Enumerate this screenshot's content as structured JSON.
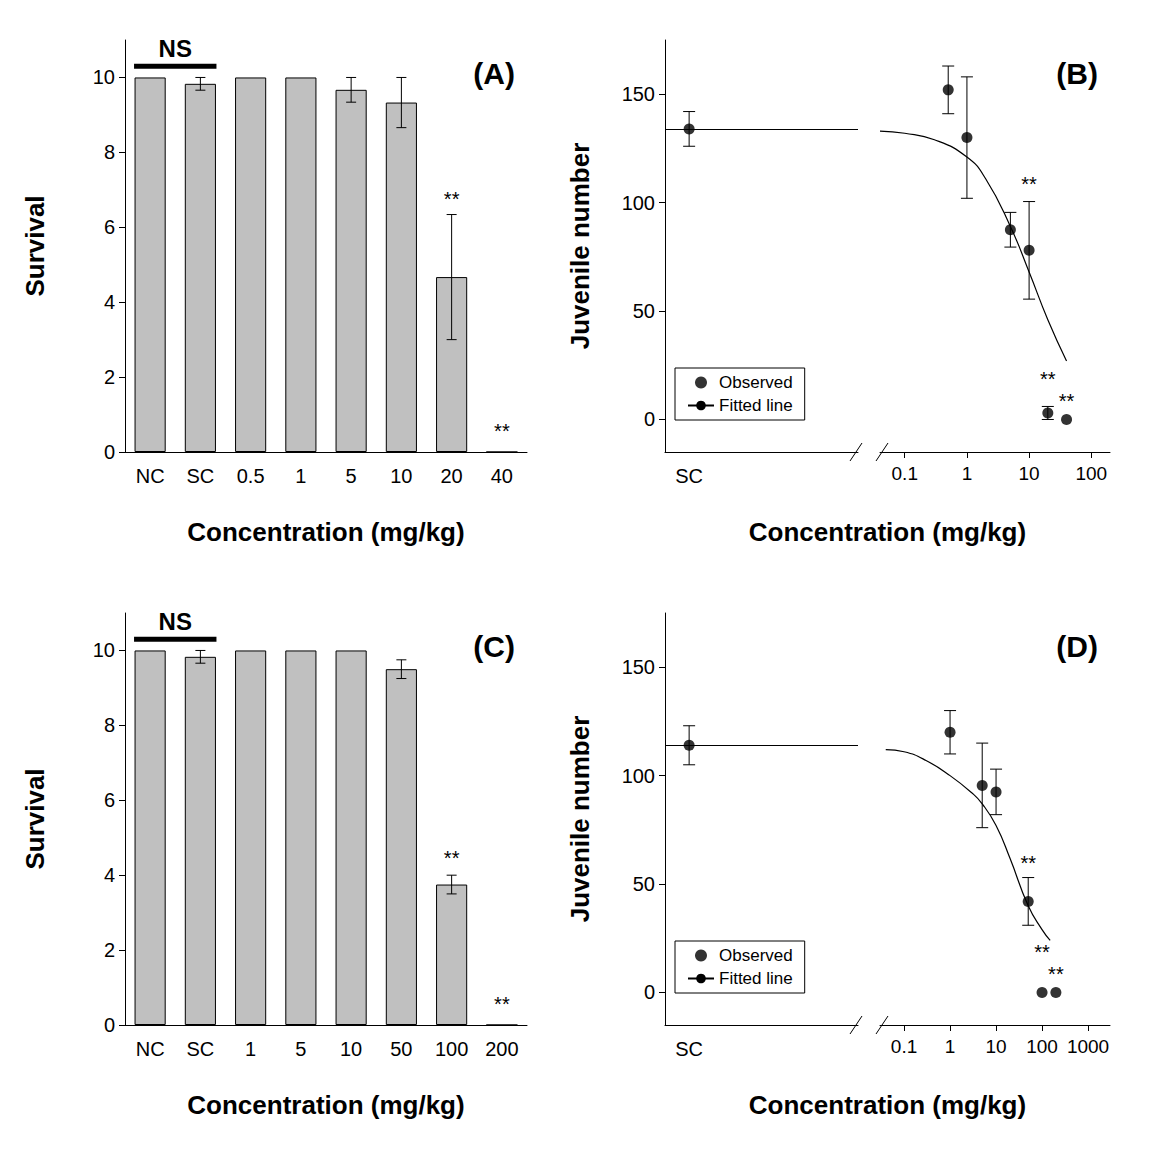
{
  "chart_data": [
    {
      "type": "bar",
      "panel_label": "(A)",
      "x_label": "Concentration (mg/kg)",
      "y_label": "Survival",
      "categories": [
        "NC",
        "SC",
        "0.5",
        "1",
        "5",
        "10",
        "20",
        "40"
      ],
      "values": [
        10,
        9.83,
        10,
        10,
        9.67,
        9.33,
        4.67,
        0
      ],
      "errors": [
        0,
        0.17,
        0,
        0,
        0.33,
        0.67,
        1.67,
        0
      ],
      "color": "#c0c0c0",
      "ylim": [
        0,
        11
      ],
      "yticks": [
        0,
        2,
        4,
        6,
        8,
        10
      ],
      "grid": false,
      "annotations": [
        {
          "text": "NS",
          "from": "NC",
          "to": "SC",
          "y": 10.3
        },
        {
          "text": "**",
          "x": "20",
          "y": 6.5
        },
        {
          "text": "**",
          "x": "40",
          "y": 0.3
        }
      ]
    },
    {
      "type": "scatter",
      "panel_label": "(B)",
      "x_label": "Concentration (mg/kg)",
      "y_label": "Juvenile number",
      "log": "x",
      "xlim": [
        0.04,
        200
      ],
      "xticks": [
        0.1,
        1,
        10,
        100
      ],
      "ylim": [
        -15,
        175
      ],
      "yticks": [
        0,
        50,
        100,
        150
      ],
      "grid": false,
      "legend": "lower left",
      "control": {
        "label": "SC",
        "value": 134,
        "error": 8
      },
      "series": [
        {
          "name": "Observed",
          "type": "scatter",
          "color": "#000000",
          "marker": "circle",
          "x": [
            0.5,
            1,
            5,
            10,
            20,
            40
          ],
          "values": [
            152,
            130,
            87.5,
            78,
            3,
            0
          ],
          "errors": [
            11,
            28,
            8,
            22.5,
            3,
            0
          ]
        },
        {
          "name": "Fitted line",
          "type": "line",
          "color": "#000000",
          "line_style": "solid",
          "control_level": 134,
          "x": [
            0.04,
            0.1,
            0.3,
            1,
            2,
            5,
            10,
            20,
            40
          ],
          "values": [
            133,
            132,
            129,
            121,
            111,
            89,
            68,
            46,
            27
          ]
        }
      ],
      "annotations": [
        {
          "text": "**",
          "x": 10,
          "y": 104
        },
        {
          "text": "**",
          "x": 20,
          "y": 14
        },
        {
          "text": "**",
          "x": 40,
          "y": 4
        }
      ]
    },
    {
      "type": "bar",
      "panel_label": "(C)",
      "x_label": "Concentration (mg/kg)",
      "y_label": "Survival",
      "categories": [
        "NC",
        "SC",
        "1",
        "5",
        "10",
        "50",
        "100",
        "200"
      ],
      "values": [
        10,
        9.83,
        10,
        10,
        10,
        9.5,
        3.75,
        0
      ],
      "errors": [
        0,
        0.17,
        0,
        0,
        0,
        0.25,
        0.25,
        0
      ],
      "color": "#c0c0c0",
      "ylim": [
        0,
        11
      ],
      "yticks": [
        0,
        2,
        4,
        6,
        8,
        10
      ],
      "grid": false,
      "annotations": [
        {
          "text": "NS",
          "from": "NC",
          "to": "SC",
          "y": 10.3
        },
        {
          "text": "**",
          "x": "100",
          "y": 4.2
        },
        {
          "text": "**",
          "x": "200",
          "y": 0.3
        }
      ]
    },
    {
      "type": "scatter",
      "panel_label": "(D)",
      "x_label": "Concentration (mg/kg)",
      "y_label": "Juvenile number",
      "log": "x",
      "xlim": [
        0.03,
        3000
      ],
      "xticks": [
        0.1,
        1,
        10,
        100,
        1000
      ],
      "ylim": [
        -15,
        175
      ],
      "yticks": [
        0,
        50,
        100,
        150
      ],
      "grid": false,
      "legend": "lower left",
      "control": {
        "label": "SC",
        "value": 114,
        "error": 9
      },
      "series": [
        {
          "name": "Observed",
          "type": "scatter",
          "color": "#000000",
          "marker": "circle",
          "x": [
            1,
            5,
            10,
            50,
            100,
            200
          ],
          "values": [
            120,
            95.5,
            92.5,
            42,
            0,
            0
          ],
          "errors": [
            10,
            19.5,
            10.5,
            11,
            0,
            0
          ]
        },
        {
          "name": "Fitted line",
          "type": "line",
          "color": "#000000",
          "line_style": "solid",
          "control_level": 114,
          "x": [
            0.04,
            0.1,
            0.3,
            1,
            3,
            5,
            10,
            20,
            50,
            100,
            150
          ],
          "values": [
            112,
            111,
            107,
            100,
            92,
            87,
            77,
            62,
            40,
            29,
            24
          ]
        }
      ],
      "annotations": [
        {
          "text": "**",
          "x": 50,
          "y": 55
        },
        {
          "text": "**",
          "x": 100,
          "y": 14
        },
        {
          "text": "**",
          "x": 200,
          "y": 4
        }
      ]
    }
  ]
}
